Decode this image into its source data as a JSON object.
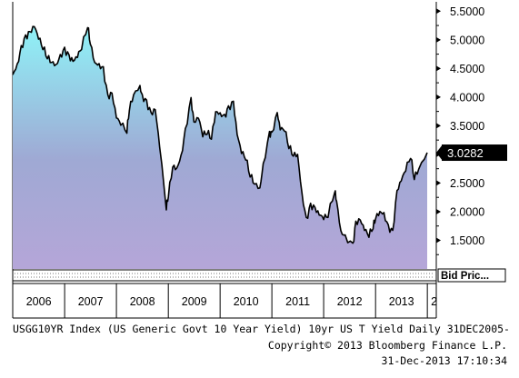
{
  "chart_data": {
    "type": "area",
    "x_range": [
      "2005-12-31",
      "2013-12-31"
    ],
    "x_tick_labels": [
      "2006",
      "2007",
      "2008",
      "2009",
      "2010",
      "2011",
      "2012",
      "2013",
      "2"
    ],
    "y_ticks": [
      "5.5000",
      "5.0000",
      "4.5000",
      "4.0000",
      "3.5000",
      "3.0000",
      "2.5000",
      "2.0000",
      "1.5000"
    ],
    "ylim": [
      1.0,
      5.6
    ],
    "grid": false,
    "last_price_label": "3.0282",
    "bottom_panel_label": "Bid Pric...",
    "gradient_colors": [
      "#8ff2f7",
      "#9fa9d4",
      "#b5a6d8"
    ],
    "series": [
      {
        "x": [
          "2005-12-31",
          "2006-02-01",
          "2006-03-01",
          "2006-04-01",
          "2006-05-01",
          "2006-06-01",
          "2006-07-01",
          "2006-08-01",
          "2006-09-01",
          "2006-10-01",
          "2006-11-01",
          "2006-12-01",
          "2007-01-01",
          "2007-02-01",
          "2007-03-01",
          "2007-04-01",
          "2007-05-01",
          "2007-06-12",
          "2007-07-01",
          "2007-08-01",
          "2007-09-01",
          "2007-10-01",
          "2007-11-01",
          "2007-12-01",
          "2008-01-01",
          "2008-02-01",
          "2008-03-15",
          "2008-04-01",
          "2008-05-01",
          "2008-06-15",
          "2008-07-01",
          "2008-08-01",
          "2008-09-01",
          "2008-10-01",
          "2008-11-01",
          "2008-12-18",
          "2009-01-01",
          "2009-02-01",
          "2009-03-01",
          "2009-04-01",
          "2009-05-01",
          "2009-06-10",
          "2009-07-01",
          "2009-08-01",
          "2009-09-01",
          "2009-10-01",
          "2009-11-01",
          "2009-12-01",
          "2010-01-01",
          "2010-02-01",
          "2010-03-01",
          "2010-04-05",
          "2010-05-01",
          "2010-06-01",
          "2010-07-01",
          "2010-08-01",
          "2010-09-01",
          "2010-10-08",
          "2010-11-01",
          "2010-12-15",
          "2011-01-01",
          "2011-02-08",
          "2011-03-01",
          "2011-04-01",
          "2011-05-01",
          "2011-06-01",
          "2011-07-01",
          "2011-08-01",
          "2011-09-01",
          "2011-10-01",
          "2011-11-01",
          "2011-12-01",
          "2012-01-01",
          "2012-02-01",
          "2012-03-19",
          "2012-04-01",
          "2012-05-01",
          "2012-06-01",
          "2012-07-25",
          "2012-08-15",
          "2012-09-15",
          "2012-10-15",
          "2012-11-15",
          "2012-12-15",
          "2013-01-01",
          "2013-02-01",
          "2013-03-01",
          "2013-04-01",
          "2013-05-02",
          "2013-06-01",
          "2013-07-01",
          "2013-08-01",
          "2013-09-05",
          "2013-10-01",
          "2013-11-01",
          "2013-12-31"
        ],
        "values": [
          4.39,
          4.55,
          4.85,
          5.04,
          5.12,
          5.24,
          5.05,
          4.88,
          4.71,
          4.62,
          4.55,
          4.7,
          4.82,
          4.7,
          4.62,
          4.72,
          4.88,
          5.26,
          4.95,
          4.6,
          4.55,
          4.48,
          4.0,
          4.05,
          3.65,
          3.55,
          3.42,
          3.8,
          4.05,
          4.18,
          4.0,
          3.9,
          3.7,
          3.78,
          3.15,
          2.08,
          2.3,
          2.8,
          2.75,
          2.95,
          3.4,
          3.95,
          3.55,
          3.65,
          3.35,
          3.4,
          3.3,
          3.75,
          3.7,
          3.65,
          3.8,
          3.9,
          3.35,
          3.05,
          2.95,
          2.65,
          2.5,
          2.4,
          2.8,
          3.35,
          3.35,
          3.72,
          3.45,
          3.45,
          3.15,
          3.0,
          3.0,
          2.3,
          1.85,
          2.1,
          2.05,
          1.95,
          1.9,
          1.95,
          2.38,
          2.2,
          1.65,
          1.55,
          1.4,
          1.8,
          1.85,
          1.7,
          1.6,
          1.75,
          1.9,
          2.0,
          1.95,
          1.72,
          1.63,
          2.35,
          2.55,
          2.75,
          2.98,
          2.6,
          2.75,
          3.03
        ]
      }
    ]
  },
  "footer": {
    "line1": "USGG10YR Index (US Generic Govt 10 Year Yield) 10yr US T Yield  Daily 31DEC2005-",
    "line2": "Copyright© 2013 Bloomberg Finance L.P.",
    "line3": "31-Dec-2013 17:10:34"
  }
}
